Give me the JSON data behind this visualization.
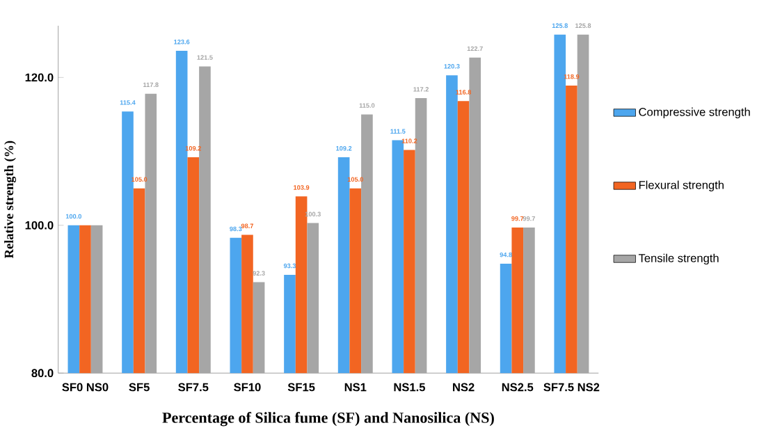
{
  "chart_data": {
    "type": "bar",
    "xlabel": "Percentage of  Silica fume (SF) and Nanosilica (NS)",
    "ylabel": "Relative  strength (%)",
    "categories": [
      "SF0 NS0",
      "SF5",
      "SF7.5",
      "SF10",
      "SF15",
      "NS1",
      "NS1.5",
      "NS2",
      "NS2.5",
      "SF7.5 NS2"
    ],
    "series": [
      {
        "name": "Compressive strength",
        "color": "#4da6ee",
        "values": [
          100.0,
          115.4,
          123.6,
          98.3,
          93.3,
          109.2,
          111.5,
          120.3,
          94.8,
          125.8
        ],
        "value_labels": [
          "100.0",
          "115.4",
          "123.6",
          "98.3",
          "93.3",
          "109.2",
          "111.5",
          "120.3",
          "94.8",
          "125.8"
        ]
      },
      {
        "name": "Flexural strength",
        "color": "#f26522",
        "values": [
          100.0,
          105.0,
          109.2,
          98.7,
          103.9,
          105.0,
          110.2,
          116.8,
          99.7,
          118.9
        ],
        "value_labels": [
          null,
          "105.0",
          "109.2",
          "98.7",
          "103.9",
          "105.0",
          "110.2",
          "116.8",
          "99.7",
          "118.9"
        ]
      },
      {
        "name": "Tensile strength",
        "color": "#a6a6a6",
        "values": [
          100.0,
          117.8,
          121.5,
          92.3,
          100.3,
          115.0,
          117.2,
          122.7,
          99.7,
          125.8
        ],
        "value_labels": [
          null,
          "117.8",
          "121.5",
          "92.3",
          "100.3",
          "115.0",
          "117.2",
          "122.7",
          "99.7",
          "125.8"
        ]
      }
    ],
    "ylim": [
      80,
      127
    ],
    "yticks": [
      {
        "value": 80,
        "label": "80.0"
      },
      {
        "value": 100,
        "label": "100.0"
      },
      {
        "value": 120,
        "label": "120.0"
      }
    ],
    "legend": "right",
    "grid": false
  }
}
